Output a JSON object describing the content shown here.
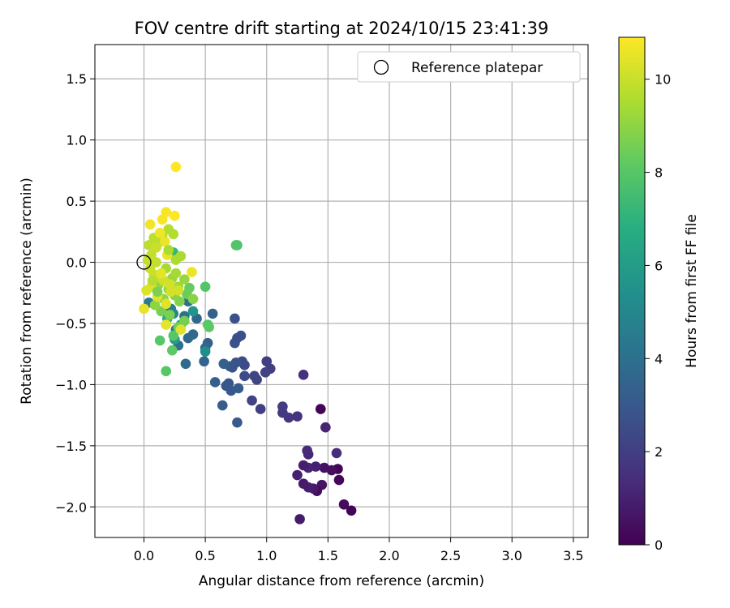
{
  "chart_data": {
    "type": "scatter",
    "title": "FOV centre drift starting at 2024/10/15 23:41:39",
    "xlabel": "Angular distance from reference (arcmin)",
    "ylabel": "Rotation from reference (arcmin)",
    "xlim": [
      -0.4,
      3.62
    ],
    "ylim": [
      -2.25,
      1.78
    ],
    "xticks": [
      "0.0",
      "0.5",
      "1.0",
      "1.5",
      "2.0",
      "2.5",
      "3.0",
      "3.5"
    ],
    "yticks": [
      "1.5",
      "1.0",
      "0.5",
      "0.0",
      "−0.5",
      "−1.0",
      "−1.5",
      "−2.0"
    ],
    "grid": true,
    "legend": {
      "position": "top-right",
      "entries": [
        "Reference platepar"
      ]
    },
    "reference_point": {
      "x": 0.0,
      "y": 0.0
    },
    "colorbar": {
      "label": "Hours from first FF file",
      "range": [
        0,
        10.9
      ],
      "colormap": "viridis",
      "ticks": [
        "0",
        "2",
        "4",
        "6",
        "8",
        "10"
      ]
    },
    "points": [
      {
        "x": 1.69,
        "y": -2.03,
        "t": 0.1
      },
      {
        "x": 1.63,
        "y": -1.98,
        "t": 0.3
      },
      {
        "x": 1.59,
        "y": -1.78,
        "t": 0.2
      },
      {
        "x": 1.58,
        "y": -1.69,
        "t": 0.1
      },
      {
        "x": 1.53,
        "y": -1.7,
        "t": 0.4
      },
      {
        "x": 1.47,
        "y": -1.68,
        "t": 0.5
      },
      {
        "x": 1.45,
        "y": -1.82,
        "t": 0.6
      },
      {
        "x": 1.41,
        "y": -1.87,
        "t": 0.3
      },
      {
        "x": 1.38,
        "y": -1.85,
        "t": 0.7
      },
      {
        "x": 1.34,
        "y": -1.84,
        "t": 0.9
      },
      {
        "x": 1.3,
        "y": -1.81,
        "t": 0.8
      },
      {
        "x": 1.4,
        "y": -1.67,
        "t": 1.0
      },
      {
        "x": 1.34,
        "y": -1.68,
        "t": 1.1
      },
      {
        "x": 1.3,
        "y": -1.66,
        "t": 0.9
      },
      {
        "x": 1.34,
        "y": -1.57,
        "t": 1.2
      },
      {
        "x": 1.33,
        "y": -1.54,
        "t": 1.3
      },
      {
        "x": 1.25,
        "y": -1.74,
        "t": 1.0
      },
      {
        "x": 1.27,
        "y": -2.1,
        "t": 0.8
      },
      {
        "x": 1.57,
        "y": -1.56,
        "t": 1.4
      },
      {
        "x": 1.48,
        "y": -1.35,
        "t": 1.1
      },
      {
        "x": 1.44,
        "y": -1.2,
        "t": 0.1
      },
      {
        "x": 1.3,
        "y": -0.92,
        "t": 1.5
      },
      {
        "x": 1.25,
        "y": -1.26,
        "t": 1.6
      },
      {
        "x": 1.18,
        "y": -1.27,
        "t": 1.7
      },
      {
        "x": 1.13,
        "y": -1.23,
        "t": 1.8
      },
      {
        "x": 1.13,
        "y": -1.18,
        "t": 1.9
      },
      {
        "x": 1.03,
        "y": -0.87,
        "t": 2.0
      },
      {
        "x": 1.0,
        "y": -0.81,
        "t": 2.0
      },
      {
        "x": 0.99,
        "y": -0.9,
        "t": 2.1
      },
      {
        "x": 0.95,
        "y": -1.2,
        "t": 2.0
      },
      {
        "x": 0.92,
        "y": -0.96,
        "t": 2.2
      },
      {
        "x": 0.9,
        "y": -0.93,
        "t": 2.3
      },
      {
        "x": 0.88,
        "y": -1.13,
        "t": 2.2
      },
      {
        "x": 0.82,
        "y": -0.84,
        "t": 2.4
      },
      {
        "x": 0.82,
        "y": -0.93,
        "t": 2.5
      },
      {
        "x": 0.8,
        "y": -0.81,
        "t": 2.5
      },
      {
        "x": 0.79,
        "y": -0.6,
        "t": 2.6
      },
      {
        "x": 0.76,
        "y": -0.62,
        "t": 2.6
      },
      {
        "x": 0.74,
        "y": -0.46,
        "t": 2.7
      },
      {
        "x": 0.74,
        "y": -0.66,
        "t": 2.7
      },
      {
        "x": 0.75,
        "y": -0.82,
        "t": 2.8
      },
      {
        "x": 0.72,
        "y": -0.86,
        "t": 2.8
      },
      {
        "x": 0.7,
        "y": -0.85,
        "t": 2.9
      },
      {
        "x": 0.69,
        "y": -0.99,
        "t": 2.9
      },
      {
        "x": 0.71,
        "y": -1.05,
        "t": 3.0
      },
      {
        "x": 0.67,
        "y": -1.01,
        "t": 3.0
      },
      {
        "x": 0.77,
        "y": -1.03,
        "t": 3.1
      },
      {
        "x": 0.76,
        "y": -1.31,
        "t": 3.1
      },
      {
        "x": 0.64,
        "y": -1.17,
        "t": 3.2
      },
      {
        "x": 0.58,
        "y": -0.98,
        "t": 3.3
      },
      {
        "x": 0.65,
        "y": -0.83,
        "t": 3.3
      },
      {
        "x": 0.56,
        "y": -0.42,
        "t": 3.4
      },
      {
        "x": 0.52,
        "y": -0.66,
        "t": 3.4
      },
      {
        "x": 0.49,
        "y": -0.81,
        "t": 3.5
      },
      {
        "x": 0.5,
        "y": -0.7,
        "t": 3.6
      },
      {
        "x": 0.43,
        "y": -0.46,
        "t": 3.6
      },
      {
        "x": 0.4,
        "y": -0.59,
        "t": 3.7
      },
      {
        "x": 0.36,
        "y": -0.62,
        "t": 3.7
      },
      {
        "x": 0.34,
        "y": -0.83,
        "t": 3.8
      },
      {
        "x": 0.28,
        "y": -0.68,
        "t": 3.9
      },
      {
        "x": 0.36,
        "y": -0.32,
        "t": 4.0
      },
      {
        "x": 0.33,
        "y": -0.44,
        "t": 4.1
      },
      {
        "x": 0.26,
        "y": -0.55,
        "t": 4.3
      },
      {
        "x": 0.04,
        "y": -0.33,
        "t": 4.5
      },
      {
        "x": 0.22,
        "y": -0.38,
        "t": 4.6
      },
      {
        "x": 0.24,
        "y": -0.42,
        "t": 5.0
      },
      {
        "x": 0.5,
        "y": -0.73,
        "t": 5.3
      },
      {
        "x": 0.4,
        "y": -0.4,
        "t": 5.7
      },
      {
        "x": 0.25,
        "y": -0.63,
        "t": 6.0
      },
      {
        "x": 0.3,
        "y": -0.51,
        "t": 6.4
      },
      {
        "x": 0.19,
        "y": -0.46,
        "t": 6.8
      },
      {
        "x": 0.24,
        "y": 0.08,
        "t": 7.2
      },
      {
        "x": 0.76,
        "y": 0.14,
        "t": 7.6
      },
      {
        "x": 0.75,
        "y": 0.14,
        "t": 7.9
      },
      {
        "x": 0.5,
        "y": -0.2,
        "t": 7.9
      },
      {
        "x": 0.52,
        "y": -0.51,
        "t": 8.0
      },
      {
        "x": 0.53,
        "y": -0.53,
        "t": 8.1
      },
      {
        "x": 0.24,
        "y": -0.6,
        "t": 8.0
      },
      {
        "x": 0.23,
        "y": -0.72,
        "t": 8.1
      },
      {
        "x": 0.13,
        "y": -0.64,
        "t": 8.0
      },
      {
        "x": 0.18,
        "y": -0.89,
        "t": 8.0
      },
      {
        "x": 0.37,
        "y": -0.21,
        "t": 8.3
      },
      {
        "x": 0.35,
        "y": -0.26,
        "t": 8.4
      },
      {
        "x": 0.28,
        "y": -0.53,
        "t": 8.5
      },
      {
        "x": 0.33,
        "y": -0.48,
        "t": 8.6
      },
      {
        "x": 0.14,
        "y": -0.4,
        "t": 8.6
      },
      {
        "x": 0.21,
        "y": -0.43,
        "t": 8.7
      },
      {
        "x": 0.29,
        "y": -0.32,
        "t": 8.8
      },
      {
        "x": 0.25,
        "y": -0.27,
        "t": 8.9
      },
      {
        "x": 0.16,
        "y": -0.3,
        "t": 9.0
      },
      {
        "x": 0.09,
        "y": -0.35,
        "t": 9.0
      },
      {
        "x": 0.12,
        "y": -0.18,
        "t": 9.1
      },
      {
        "x": 0.2,
        "y": -0.22,
        "t": 9.2
      },
      {
        "x": 0.23,
        "y": -0.13,
        "t": 9.2
      },
      {
        "x": 0.28,
        "y": -0.2,
        "t": 9.3
      },
      {
        "x": 0.18,
        "y": -0.05,
        "t": 9.4
      },
      {
        "x": 0.26,
        "y": 0.02,
        "t": 9.5
      },
      {
        "x": 0.3,
        "y": 0.05,
        "t": 9.5
      },
      {
        "x": 0.24,
        "y": 0.23,
        "t": 9.6
      },
      {
        "x": 0.2,
        "y": 0.27,
        "t": 9.6
      },
      {
        "x": 0.15,
        "y": 0.22,
        "t": 9.7
      },
      {
        "x": 0.12,
        "y": 0.16,
        "t": 9.7
      },
      {
        "x": 0.08,
        "y": 0.2,
        "t": 9.8
      },
      {
        "x": 0.04,
        "y": 0.14,
        "t": 9.8
      },
      {
        "x": 0.06,
        "y": 0.06,
        "t": 9.9
      },
      {
        "x": 0.1,
        "y": 0.0,
        "t": 9.9
      },
      {
        "x": 0.05,
        "y": -0.05,
        "t": 10.0
      },
      {
        "x": 0.08,
        "y": -0.1,
        "t": 10.0
      },
      {
        "x": 0.13,
        "y": -0.12,
        "t": 10.1
      },
      {
        "x": 0.16,
        "y": -0.15,
        "t": 10.1
      },
      {
        "x": 0.21,
        "y": -0.18,
        "t": 10.2
      },
      {
        "x": 0.28,
        "y": -0.23,
        "t": 10.2
      },
      {
        "x": 0.06,
        "y": -0.2,
        "t": 10.3
      },
      {
        "x": 0.02,
        "y": -0.23,
        "t": 10.3
      },
      {
        "x": 0.11,
        "y": -0.28,
        "t": 10.4
      },
      {
        "x": 0.18,
        "y": -0.34,
        "t": 10.4
      },
      {
        "x": 0.0,
        "y": -0.38,
        "t": 10.5
      },
      {
        "x": 0.14,
        "y": -0.09,
        "t": 10.5
      },
      {
        "x": 0.19,
        "y": 0.06,
        "t": 10.6
      },
      {
        "x": 0.17,
        "y": 0.17,
        "t": 10.6
      },
      {
        "x": 0.13,
        "y": 0.24,
        "t": 10.7
      },
      {
        "x": 0.05,
        "y": 0.31,
        "t": 10.7
      },
      {
        "x": 0.15,
        "y": 0.35,
        "t": 10.8
      },
      {
        "x": 0.18,
        "y": 0.41,
        "t": 10.8
      },
      {
        "x": 0.25,
        "y": 0.38,
        "t": 10.9
      },
      {
        "x": 0.26,
        "y": 0.78,
        "t": 10.9
      },
      {
        "x": 0.39,
        "y": -0.08,
        "t": 10.6
      },
      {
        "x": 0.18,
        "y": -0.51,
        "t": 10.5
      },
      {
        "x": 0.3,
        "y": -0.55,
        "t": 10.4
      },
      {
        "x": 0.22,
        "y": -0.24,
        "t": 10.2
      },
      {
        "x": 0.1,
        "y": 0.12,
        "t": 10.0
      },
      {
        "x": 0.03,
        "y": 0.02,
        "t": 9.9
      },
      {
        "x": 0.07,
        "y": -0.15,
        "t": 9.7
      },
      {
        "x": 0.26,
        "y": -0.09,
        "t": 9.4
      },
      {
        "x": 0.33,
        "y": -0.14,
        "t": 9.2
      },
      {
        "x": 0.4,
        "y": -0.3,
        "t": 8.9
      },
      {
        "x": 0.11,
        "y": -0.24,
        "t": 8.7
      },
      {
        "x": 0.2,
        "y": 0.1,
        "t": 9.5
      }
    ]
  }
}
